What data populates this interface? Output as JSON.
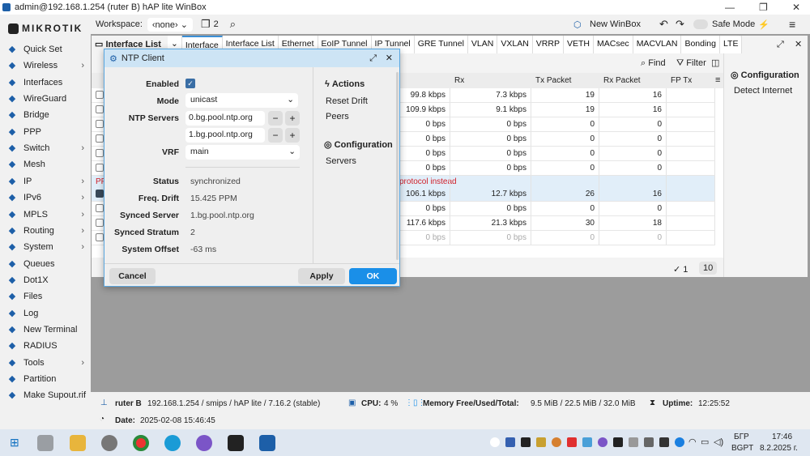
{
  "window": {
    "title": "admin@192.168.1.254 (ruter B) hAP lite WinBox"
  },
  "sidebar": {
    "brand": "MIKROTIK",
    "items": [
      {
        "label": "Quick Set",
        "icon": "wand-icon",
        "sub": false
      },
      {
        "label": "Wireless",
        "icon": "wireless-icon",
        "sub": true
      },
      {
        "label": "Interfaces",
        "icon": "interfaces-icon",
        "sub": false
      },
      {
        "label": "WireGuard",
        "icon": "wireguard-icon",
        "sub": false
      },
      {
        "label": "Bridge",
        "icon": "bridge-icon",
        "sub": false
      },
      {
        "label": "PPP",
        "icon": "ppp-icon",
        "sub": false
      },
      {
        "label": "Switch",
        "icon": "switch-icon",
        "sub": true
      },
      {
        "label": "Mesh",
        "icon": "mesh-icon",
        "sub": false
      },
      {
        "label": "IP",
        "icon": "ip-icon",
        "sub": true
      },
      {
        "label": "IPv6",
        "icon": "ipv6-icon",
        "sub": true
      },
      {
        "label": "MPLS",
        "icon": "mpls-icon",
        "sub": true
      },
      {
        "label": "Routing",
        "icon": "routing-icon",
        "sub": true
      },
      {
        "label": "System",
        "icon": "system-icon",
        "sub": true
      },
      {
        "label": "Queues",
        "icon": "queues-icon",
        "sub": false
      },
      {
        "label": "Dot1X",
        "icon": "dot1x-icon",
        "sub": false
      },
      {
        "label": "Files",
        "icon": "files-icon",
        "sub": false
      },
      {
        "label": "Log",
        "icon": "log-icon",
        "sub": false
      },
      {
        "label": "New Terminal",
        "icon": "terminal-icon",
        "sub": false
      },
      {
        "label": "RADIUS",
        "icon": "radius-icon",
        "sub": false
      },
      {
        "label": "Tools",
        "icon": "tools-icon",
        "sub": true
      },
      {
        "label": "Partition",
        "icon": "partition-icon",
        "sub": false
      },
      {
        "label": "Make Supout.rif",
        "icon": "supout-icon",
        "sub": false
      }
    ]
  },
  "toolbar": {
    "workspace_label": "Workspace:",
    "workspace_value": "‹none›",
    "windows_count": "2",
    "new_winbox": "New WinBox",
    "safe_mode": "Safe Mode"
  },
  "interface_window": {
    "title": "Interface List",
    "tabs": [
      "Interface",
      "Interface List",
      "Ethernet",
      "EoIP Tunnel",
      "IP Tunnel",
      "GRE Tunnel",
      "VLAN",
      "VXLAN",
      "VRRP",
      "VETH",
      "MACsec",
      "MACVLAN",
      "Bonding",
      "LTE"
    ],
    "find": "Find",
    "filter": "Filter",
    "columns": [
      "Rx",
      "Tx Packet",
      "Rx Packet",
      "FP Tx"
    ],
    "rows": [
      {
        "tx": "99.8 kbps",
        "rx": "7.3 kbps",
        "txp": "19",
        "rxp": "16"
      },
      {
        "tx": "109.9 kbps",
        "rx": "9.1 kbps",
        "txp": "19",
        "rxp": "16"
      },
      {
        "tx": "0 bps",
        "rx": "0 bps",
        "txp": "0",
        "rxp": "0"
      },
      {
        "tx": "0 bps",
        "rx": "0 bps",
        "txp": "0",
        "rxp": "0"
      },
      {
        "tx": "0 bps",
        "rx": "0 bps",
        "txp": "0",
        "rxp": "0"
      },
      {
        "tx": "0 bps",
        "rx": "0 bps",
        "txp": "0",
        "rxp": "0"
      },
      {
        "tx": "106.1 kbps",
        "rx": "12.7 kbps",
        "txp": "26",
        "rxp": "16",
        "comment": "protocol instead",
        "comment_prefix": "PP"
      },
      {
        "tx": "0 bps",
        "rx": "0 bps",
        "txp": "0",
        "rxp": "0"
      },
      {
        "tx": "117.6 kbps",
        "rx": "21.3 kbps",
        "txp": "30",
        "rxp": "18"
      },
      {
        "tx": "0 bps",
        "rx": "0 bps",
        "txp": "0",
        "rxp": "0",
        "disabled": true
      }
    ],
    "selected_count": "1",
    "total_count": "10",
    "side": {
      "configuration": "Configuration",
      "detect_internet": "Detect Internet"
    }
  },
  "ntp_dialog": {
    "title": "NTP Client",
    "enabled_label": "Enabled",
    "enabled": true,
    "mode_label": "Mode",
    "mode": "unicast",
    "servers_label": "NTP Servers",
    "servers": [
      "0.bg.pool.ntp.org",
      "1.bg.pool.ntp.org"
    ],
    "vrf_label": "VRF",
    "vrf": "main",
    "status_label": "Status",
    "status": "synchronized",
    "drift_label": "Freq. Drift",
    "drift": "15.425 PPM",
    "synced_server_label": "Synced Server",
    "synced_server": "1.bg.pool.ntp.org",
    "stratum_label": "Synced Stratum",
    "stratum": "2",
    "offset_label": "System Offset",
    "offset": "-63 ms",
    "actions_title": "Actions",
    "reset_drift": "Reset Drift",
    "peers": "Peers",
    "config_title": "Configuration",
    "servers_link": "Servers",
    "cancel": "Cancel",
    "apply": "Apply",
    "ok": "OK"
  },
  "status": {
    "router": "ruter B",
    "router_info": "192.168.1.254 / smips / hAP lite / 7.16.2 (stable)",
    "cpu_label": "CPU:",
    "cpu": "4 %",
    "mem_label": "Memory Free/Used/Total:",
    "mem": "9.5 MiB / 22.5 MiB / 32.0 MiB",
    "uptime_label": "Uptime:",
    "uptime": "12:25:52",
    "date_label": "Date:",
    "date": "2025-02-08 15:46:45"
  },
  "taskbar": {
    "lang1": "БГР",
    "lang2": "BGPT",
    "time": "17:46",
    "date": "8.2.2025 г."
  },
  "colors": {
    "accent": "#1a8fe8",
    "dialog_title": "#cde4f5",
    "warning": "#d0202a"
  }
}
